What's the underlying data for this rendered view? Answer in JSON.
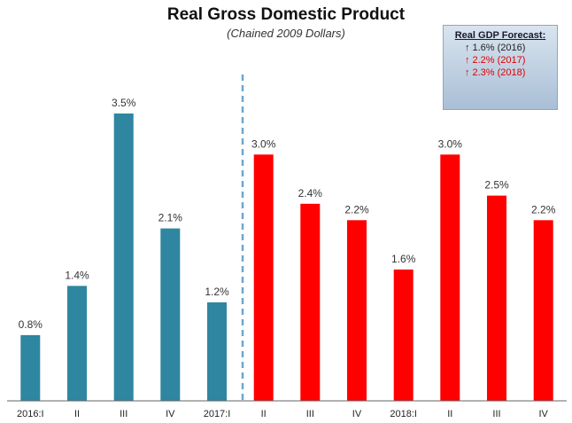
{
  "chart_data": {
    "type": "bar",
    "title": "Real Gross Domestic Product",
    "subtitle": "(Chained 2009 Dollars)",
    "categories": [
      "2016:I",
      "II",
      "III",
      "IV",
      "2017:I",
      "II",
      "III",
      "IV",
      "2018:I",
      "II",
      "III",
      "IV"
    ],
    "values": [
      0.8,
      1.4,
      3.5,
      2.1,
      1.2,
      3.0,
      2.4,
      2.2,
      1.6,
      3.0,
      2.5,
      2.2
    ],
    "value_labels": [
      "0.8%",
      "1.4%",
      "3.5%",
      "2.1%",
      "1.2%",
      "3.0%",
      "2.4%",
      "2.2%",
      "1.6%",
      "3.0%",
      "2.5%",
      "2.2%"
    ],
    "forecast": [
      false,
      false,
      false,
      false,
      false,
      true,
      true,
      true,
      true,
      true,
      true,
      true
    ],
    "ylim": [
      0,
      3.5
    ],
    "grid": false,
    "colors": {
      "actual": "#2e86a0",
      "forecast": "#ff0000",
      "divider": "#6aa8d2"
    },
    "legend_box": {
      "title": "Real GDP Forecast:",
      "entries": [
        {
          "text": "1.6% (2016)",
          "color": "#222222"
        },
        {
          "text": "2.2% (2017)",
          "color": "#e00000"
        },
        {
          "text": "2.3% (2018)",
          "color": "#e00000"
        }
      ],
      "arrow_glyph": "↑",
      "placement": "top-right"
    }
  }
}
